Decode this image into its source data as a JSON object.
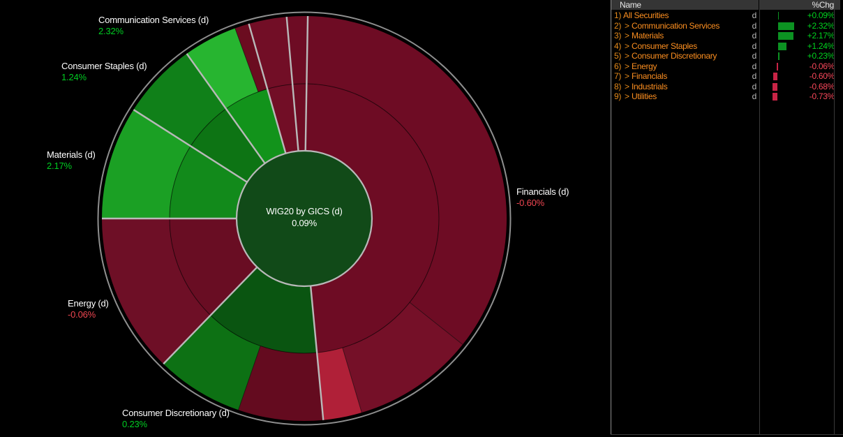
{
  "chart": {
    "center": {
      "title": "WIG20 by GICS (d)",
      "value": "0.09%"
    },
    "labels": [
      {
        "text": "Communication Services (d)",
        "value": "2.32%",
        "color": "#00cd22"
      },
      {
        "text": "Consumer Staples (d)",
        "value": "1.24%",
        "color": "#00cd22"
      },
      {
        "text": "Materials (d)",
        "value": "2.17%",
        "color": "#00cd22"
      },
      {
        "text": "Energy (d)",
        "value": "-0.06%",
        "color": "#ef4651"
      },
      {
        "text": "Consumer Discretionary (d)",
        "value": "0.23%",
        "color": "#00cd22"
      },
      {
        "text": "Financials (d)",
        "value": "-0.60%",
        "color": "#ef4651"
      }
    ]
  },
  "chart_data": {
    "type": "sunburst",
    "title": "WIG20 by GICS (d)",
    "center_value_pct": 0.09,
    "units": "percent change (daily)",
    "rings": [
      "sectors",
      "constituents"
    ],
    "center_color": "#114a18",
    "sectors": [
      {
        "name": "Financials",
        "pct_chg": -0.6,
        "start_deg": 1,
        "end_deg": 174.6,
        "color": "#6e0c24",
        "constituents": [
          {
            "start_deg": 1,
            "end_deg": 128.5,
            "color": "#6e0c24"
          },
          {
            "start_deg": 128.5,
            "end_deg": 163.5,
            "color": "#751028"
          },
          {
            "start_deg": 163.5,
            "end_deg": 174.6,
            "color": "#b02038"
          }
        ]
      },
      {
        "name": "Consumer Discretionary",
        "pct_chg": 0.23,
        "start_deg": 174.6,
        "end_deg": 224.1,
        "color": "#0a5511",
        "constituents": [
          {
            "start_deg": 174.6,
            "end_deg": 199,
            "color": "#640b1f"
          },
          {
            "start_deg": 199,
            "end_deg": 224.1,
            "color": "#0d7114"
          }
        ]
      },
      {
        "name": "Energy",
        "pct_chg": -0.06,
        "start_deg": 224.1,
        "end_deg": 270,
        "color": "#690d23",
        "constituents": [
          {
            "start_deg": 224.1,
            "end_deg": 270,
            "color": "#6e0f26"
          }
        ]
      },
      {
        "name": "Materials",
        "pct_chg": 2.17,
        "start_deg": 270,
        "end_deg": 302.5,
        "color": "#128a1b",
        "constituents": [
          {
            "start_deg": 270,
            "end_deg": 302.5,
            "color": "#1ba024"
          }
        ]
      },
      {
        "name": "Consumer Staples",
        "pct_chg": 1.24,
        "start_deg": 302.5,
        "end_deg": 324.5,
        "color": "#0d7414",
        "constituents": [
          {
            "start_deg": 302.5,
            "end_deg": 324.5,
            "color": "#108019"
          }
        ]
      },
      {
        "name": "Communication Services",
        "pct_chg": 2.32,
        "start_deg": 324.5,
        "end_deg": 344.1,
        "color": "#12931b",
        "constituents": [
          {
            "start_deg": 324.5,
            "end_deg": 340,
            "color": "#27b530"
          },
          {
            "start_deg": 340,
            "end_deg": 344.1,
            "color": "#6b0c20"
          }
        ]
      },
      {
        "name": "Industrials",
        "pct_chg": -0.68,
        "start_deg": 344.1,
        "end_deg": 355,
        "color": "#720e26",
        "constituents": [
          {
            "start_deg": 344.1,
            "end_deg": 355,
            "color": "#720e26"
          }
        ]
      },
      {
        "name": "Utilities",
        "pct_chg": -0.73,
        "start_deg": 355,
        "end_deg": 361,
        "color": "#6e0c24",
        "constituents": [
          {
            "start_deg": 355,
            "end_deg": 361,
            "color": "#6e0c24"
          }
        ]
      }
    ]
  },
  "panel": {
    "header": {
      "name": "Name",
      "chg": "%Chg"
    },
    "rows": [
      {
        "num": "1)",
        "arrow": "",
        "name": "All Securities",
        "flag": "d",
        "chg": "+0.09%",
        "chg_value": 0.09
      },
      {
        "num": "2)",
        "arrow": ">",
        "name": "Communication Services",
        "flag": "d",
        "chg": "+2.32%",
        "chg_value": 2.32
      },
      {
        "num": "3)",
        "arrow": ">",
        "name": "Materials",
        "flag": "d",
        "chg": "+2.17%",
        "chg_value": 2.17
      },
      {
        "num": "4)",
        "arrow": ">",
        "name": "Consumer Staples",
        "flag": "d",
        "chg": "+1.24%",
        "chg_value": 1.24
      },
      {
        "num": "5)",
        "arrow": ">",
        "name": "Consumer Discretionary",
        "flag": "d",
        "chg": "+0.23%",
        "chg_value": 0.23
      },
      {
        "num": "6)",
        "arrow": ">",
        "name": "Energy",
        "flag": "d",
        "chg": "-0.06%",
        "chg_value": -0.06
      },
      {
        "num": "7)",
        "arrow": ">",
        "name": "Financials",
        "flag": "d",
        "chg": "-0.60%",
        "chg_value": -0.6
      },
      {
        "num": "8)",
        "arrow": ">",
        "name": "Industrials",
        "flag": "d",
        "chg": "-0.68%",
        "chg_value": -0.68
      },
      {
        "num": "9)",
        "arrow": ">",
        "name": "Utilities",
        "flag": "d",
        "chg": "-0.73%",
        "chg_value": -0.73
      }
    ]
  },
  "colors": {
    "orange_bright": "#fb8e20",
    "orange_dim": "#e58a1a",
    "value_green": "#00d31f",
    "value_red": "#f8475a",
    "bar_green": "#0c9222",
    "bar_red": "#c92446",
    "flag_gray": "#b8b8b8",
    "sector_line": "#b9b9b9",
    "rim_gray": "#8f8f8f"
  }
}
